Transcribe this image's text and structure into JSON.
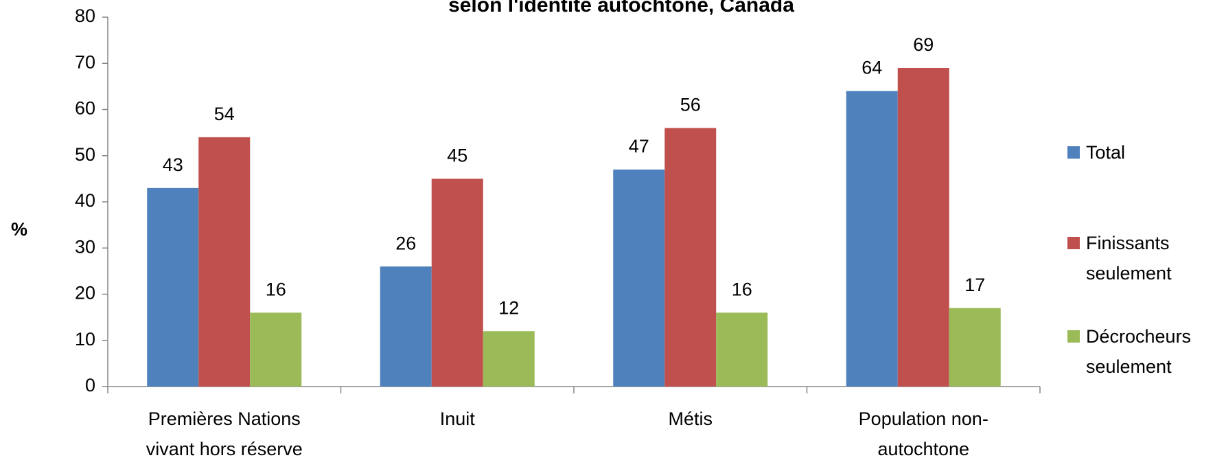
{
  "chart_data": {
    "type": "bar",
    "title": "selon l'identité autochtone, Canada",
    "y_label": "%",
    "categories": [
      "Premières Nations vivant hors réserve",
      "Inuit",
      "Métis",
      "Population non-autochtone"
    ],
    "series": [
      {
        "name": "Total",
        "color": "#4f81bd",
        "values": [
          43,
          26,
          47,
          64
        ]
      },
      {
        "name": "Finissants seulement",
        "color": "#c0504d",
        "values": [
          54,
          45,
          56,
          69
        ]
      },
      {
        "name": "Décrocheurs seulement",
        "color": "#9bbb59",
        "values": [
          16,
          12,
          16,
          17
        ]
      }
    ],
    "ylim": [
      0,
      80
    ],
    "yticks": [
      0,
      10,
      20,
      30,
      40,
      50,
      60,
      70,
      80
    ],
    "grid": false,
    "legend": "right"
  }
}
